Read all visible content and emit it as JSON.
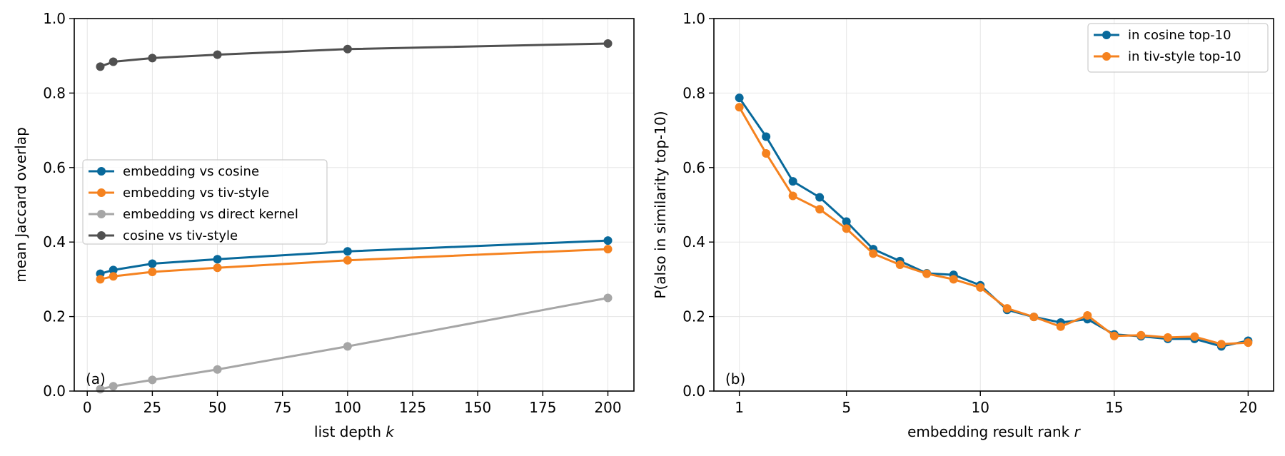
{
  "chart_data": [
    {
      "type": "line",
      "panel_label": "(a)",
      "xlabel": "list depth",
      "xlabel_var": "k",
      "ylabel": "mean Jaccard overlap",
      "xlim": [
        -5,
        210
      ],
      "ylim": [
        0,
        1.0
      ],
      "xticks": [
        0,
        25,
        50,
        75,
        100,
        125,
        150,
        175,
        200
      ],
      "yticks": [
        0.0,
        0.2,
        0.4,
        0.6,
        0.8,
        1.0
      ],
      "grid": true,
      "legend_position": "center-left",
      "x": [
        5,
        10,
        25,
        50,
        100,
        200
      ],
      "series": [
        {
          "name": "embedding vs cosine",
          "color": "#08699b",
          "values": [
            0.315,
            0.325,
            0.342,
            0.354,
            0.375,
            0.404
          ]
        },
        {
          "name": "embedding vs tiv-style",
          "color": "#f5821f",
          "values": [
            0.3,
            0.308,
            0.32,
            0.331,
            0.351,
            0.381
          ]
        },
        {
          "name": "embedding vs direct kernel",
          "color": "#a6a6a6",
          "values": [
            0.005,
            0.013,
            0.03,
            0.058,
            0.12,
            0.25
          ]
        },
        {
          "name": "cosine vs tiv-style",
          "color": "#505050",
          "values": [
            0.871,
            0.884,
            0.894,
            0.903,
            0.918,
            0.933
          ]
        }
      ]
    },
    {
      "type": "line",
      "panel_label": "(b)",
      "xlabel": "embedding result rank",
      "xlabel_var": "r",
      "ylabel": "P(also in similarity top-10)",
      "xlim": [
        0.05,
        20.95
      ],
      "ylim": [
        0,
        1.0
      ],
      "xticks": [
        1,
        5,
        10,
        15,
        20
      ],
      "yticks": [
        0.0,
        0.2,
        0.4,
        0.6,
        0.8,
        1.0
      ],
      "grid": true,
      "legend_position": "top-right",
      "x": [
        1,
        2,
        3,
        4,
        5,
        6,
        7,
        8,
        9,
        10,
        11,
        12,
        13,
        14,
        15,
        16,
        17,
        18,
        19,
        20
      ],
      "series": [
        {
          "name": "in cosine top-10",
          "color": "#08699b",
          "values": [
            0.787,
            0.683,
            0.563,
            0.52,
            0.455,
            0.381,
            0.349,
            0.316,
            0.312,
            0.284,
            0.218,
            0.199,
            0.184,
            0.193,
            0.152,
            0.147,
            0.14,
            0.14,
            0.12,
            0.135
          ]
        },
        {
          "name": "in tiv-style top-10",
          "color": "#f5821f",
          "values": [
            0.762,
            0.638,
            0.524,
            0.488,
            0.436,
            0.369,
            0.339,
            0.315,
            0.3,
            0.278,
            0.222,
            0.199,
            0.173,
            0.203,
            0.148,
            0.15,
            0.144,
            0.146,
            0.126,
            0.13
          ]
        }
      ]
    }
  ]
}
